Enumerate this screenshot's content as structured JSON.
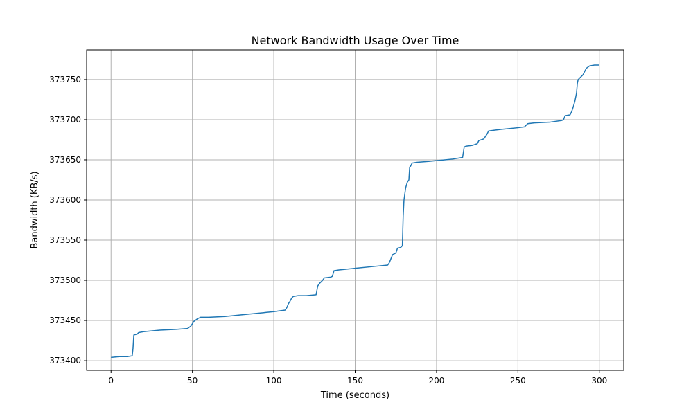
{
  "chart_data": {
    "type": "line",
    "title": "Network Bandwidth Usage Over Time",
    "xlabel": "Time (seconds)",
    "ylabel": "Bandwidth (KB/s)",
    "xlim": [
      -15,
      315
    ],
    "ylim": [
      373388,
      373787
    ],
    "xticks": [
      0,
      50,
      100,
      150,
      200,
      250,
      300
    ],
    "yticks": [
      373400,
      373450,
      373500,
      373550,
      373600,
      373650,
      373700,
      373750
    ],
    "grid": true,
    "series": [
      {
        "color": "#1f77b4",
        "points": [
          [
            0,
            373404
          ],
          [
            5,
            373405
          ],
          [
            10,
            373405
          ],
          [
            13,
            373406
          ],
          [
            13.5,
            373415
          ],
          [
            14,
            373432
          ],
          [
            16,
            373433
          ],
          [
            17,
            373435
          ],
          [
            20,
            373436
          ],
          [
            25,
            373437
          ],
          [
            30,
            373438
          ],
          [
            40,
            373439
          ],
          [
            47,
            373440
          ],
          [
            49,
            373443
          ],
          [
            51,
            373449
          ],
          [
            53,
            373452
          ],
          [
            55,
            373454
          ],
          [
            60,
            373454
          ],
          [
            70,
            373455
          ],
          [
            80,
            373457
          ],
          [
            90,
            373459
          ],
          [
            100,
            373461
          ],
          [
            107,
            373463
          ],
          [
            108,
            373466
          ],
          [
            109,
            373471
          ],
          [
            110,
            373474
          ],
          [
            111,
            373478
          ],
          [
            112,
            373480
          ],
          [
            115,
            373481
          ],
          [
            120,
            373481
          ],
          [
            126,
            373482
          ],
          [
            127,
            373493
          ],
          [
            128,
            373496
          ],
          [
            130,
            373500
          ],
          [
            131,
            373503
          ],
          [
            135,
            373504
          ],
          [
            136,
            373505
          ],
          [
            137,
            373512
          ],
          [
            140,
            373513
          ],
          [
            150,
            373515
          ],
          [
            160,
            373517
          ],
          [
            170,
            373519
          ],
          [
            171,
            373522
          ],
          [
            172,
            373527
          ],
          [
            173,
            373532
          ],
          [
            175,
            373534
          ],
          [
            176,
            373540
          ],
          [
            178,
            373541
          ],
          [
            179,
            373543
          ],
          [
            179.5,
            373580
          ],
          [
            180,
            373600
          ],
          [
            181,
            373615
          ],
          [
            182,
            373622
          ],
          [
            183,
            373625
          ],
          [
            183.5,
            373641
          ],
          [
            184,
            373642
          ],
          [
            185,
            373646
          ],
          [
            188,
            373647
          ],
          [
            195,
            373648
          ],
          [
            200,
            373649
          ],
          [
            205,
            373650
          ],
          [
            210,
            373651
          ],
          [
            216,
            373653
          ],
          [
            217,
            373666
          ],
          [
            218,
            373667
          ],
          [
            222,
            373668
          ],
          [
            225,
            373670
          ],
          [
            226,
            373674
          ],
          [
            229,
            373676
          ],
          [
            231,
            373682
          ],
          [
            232,
            373686
          ],
          [
            236,
            373687
          ],
          [
            240,
            373688
          ],
          [
            245,
            373689
          ],
          [
            250,
            373690
          ],
          [
            254,
            373691
          ],
          [
            255,
            373693
          ],
          [
            256,
            373695
          ],
          [
            260,
            373696
          ],
          [
            270,
            373697
          ],
          [
            277,
            373699
          ],
          [
            278,
            373700
          ],
          [
            279,
            373705
          ],
          [
            282,
            373706
          ],
          [
            283,
            373710
          ],
          [
            284,
            373716
          ],
          [
            285,
            373723
          ],
          [
            286,
            373733
          ],
          [
            286.5,
            373745
          ],
          [
            287,
            373750
          ],
          [
            289,
            373754
          ],
          [
            290,
            373756
          ],
          [
            291,
            373760
          ],
          [
            292,
            373764
          ],
          [
            294,
            373767
          ],
          [
            297,
            373768
          ],
          [
            300,
            373768
          ]
        ]
      }
    ]
  }
}
